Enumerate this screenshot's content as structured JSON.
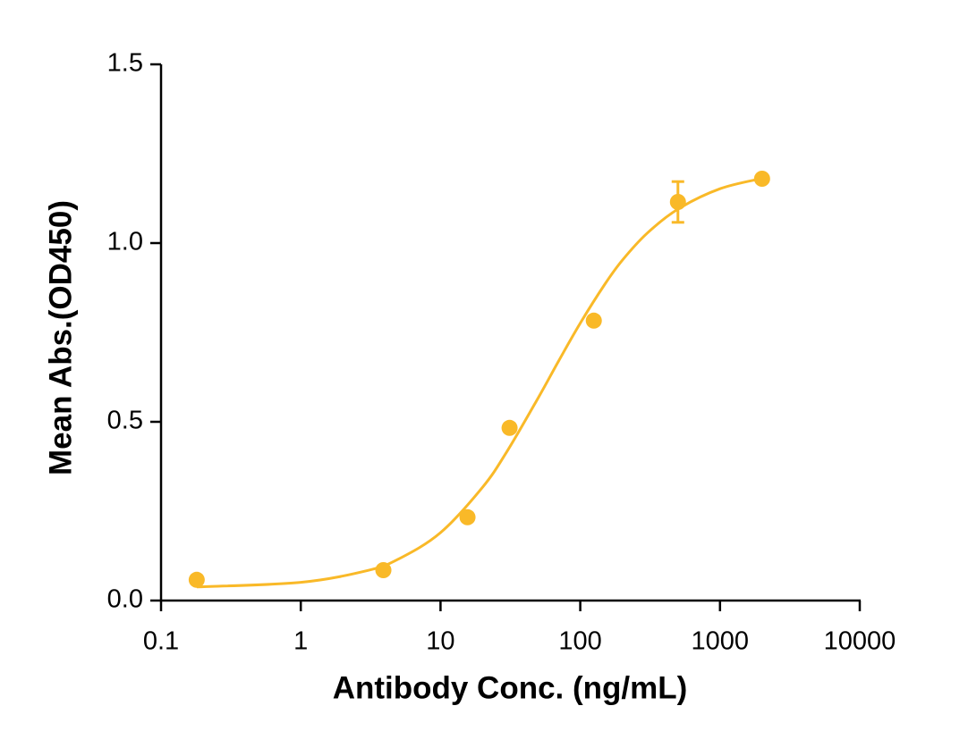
{
  "chart_data": {
    "type": "scatter",
    "x_label": "Antibody Conc. (ng/mL)",
    "y_label": "Mean Abs.(OD450)",
    "xscale": "log",
    "xlim": [
      0.1,
      10000
    ],
    "xticks": [
      0.1,
      1,
      10,
      100,
      1000,
      10000
    ],
    "ylim": [
      0,
      1.5
    ],
    "yticks": [
      {
        "value": 0,
        "label": "0.0"
      },
      {
        "value": 0.5,
        "label": "0.5"
      },
      {
        "value": 1,
        "label": "1.0"
      },
      {
        "value": 1.5,
        "label": "1.5"
      }
    ],
    "color": "#f9b928",
    "x": [
      0.18,
      3.9,
      15.6,
      31.2,
      125,
      500,
      2000
    ],
    "values": [
      0.058,
      0.085,
      0.233,
      0.483,
      0.783,
      1.115,
      1.18
    ],
    "errors": [
      null,
      null,
      null,
      null,
      null,
      0.057,
      null
    ],
    "fit": {
      "x": [
        0.18,
        1,
        3,
        5,
        10,
        20,
        30,
        50,
        70,
        100,
        150,
        200,
        300,
        500,
        1000,
        2000
      ],
      "values": [
        0.038,
        0.051,
        0.084,
        0.116,
        0.19,
        0.317,
        0.418,
        0.567,
        0.67,
        0.776,
        0.885,
        0.952,
        1.027,
        1.095,
        1.152,
        1.181
      ]
    }
  }
}
